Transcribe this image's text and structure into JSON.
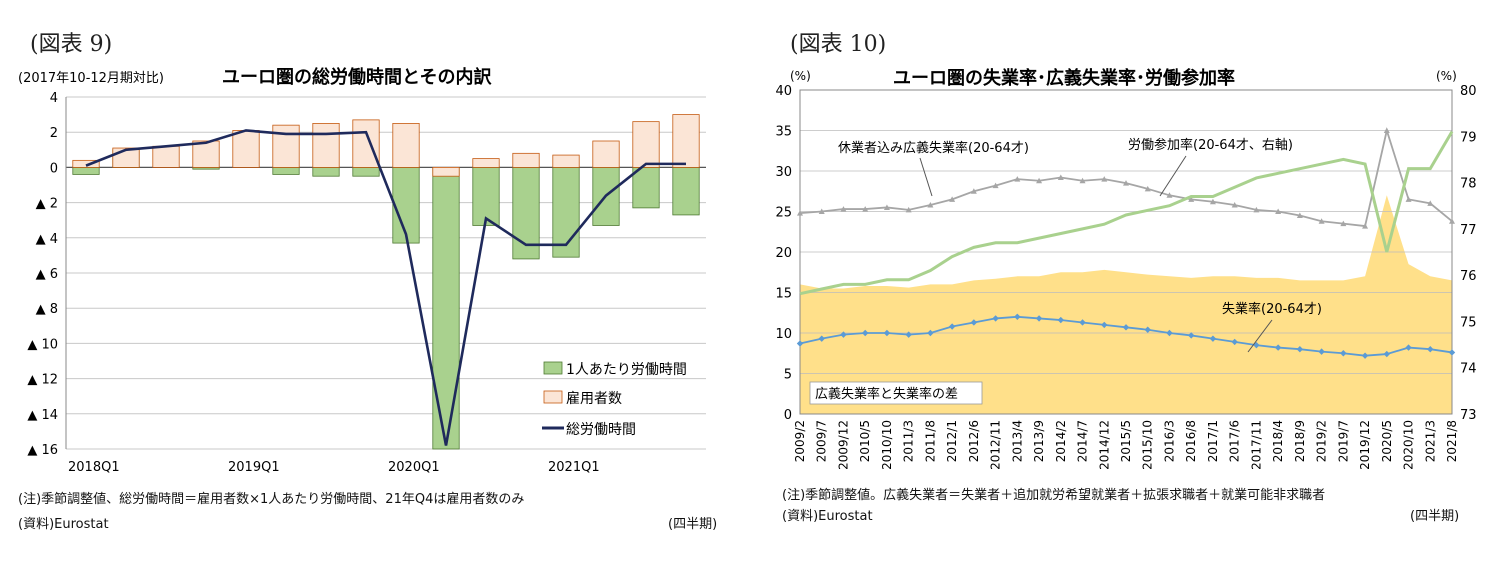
{
  "figures": [
    {
      "label": "(図表 9)",
      "notes": [
        "(注)季節調整値、総労働時間＝雇用者数×1人あたり労働時間、21年Q4は雇用者数のみ",
        "(資料)Eurostat"
      ],
      "period_label": "(四半期)"
    },
    {
      "label": "(図表 10)",
      "notes": [
        "(注)季節調整値。広義失業者＝失業者＋追加就労希望就業者＋拡張求職者＋就業可能非求職者",
        "(資料)Eurostat"
      ],
      "period_label": "(四半期)"
    }
  ],
  "chart_data": [
    {
      "type": "bar",
      "title": "ユーロ圏の総労働時間とその内訳",
      "ylabel": "(2017年10-12月期対比)",
      "ylim": [
        -16,
        4
      ],
      "yticks": [
        4,
        2,
        0,
        -2,
        -4,
        -6,
        -8,
        -10,
        -12,
        -14,
        -16
      ],
      "ytick_labels": [
        "4",
        "2",
        "0",
        "▲ 2",
        "▲ 4",
        "▲ 6",
        "▲ 8",
        "▲ 10",
        "▲ 12",
        "▲ 14",
        "▲ 16"
      ],
      "categories": [
        "2018Q1",
        "2018Q2",
        "2018Q3",
        "2018Q4",
        "2019Q1",
        "2019Q2",
        "2019Q3",
        "2019Q4",
        "2020Q1",
        "2020Q2",
        "2020Q3",
        "2020Q4",
        "2021Q1",
        "2021Q2",
        "2021Q3",
        "2021Q4"
      ],
      "xtick_labels": [
        {
          "index": 0,
          "label": "2018Q1"
        },
        {
          "index": 4,
          "label": "2019Q1"
        },
        {
          "index": 8,
          "label": "2020Q1"
        },
        {
          "index": 12,
          "label": "2021Q1"
        }
      ],
      "grid": true,
      "legend_position": "bottom-right",
      "series": [
        {
          "name": "1人あたり労働時間",
          "kind": "bar",
          "color": "#a9d18e",
          "values": [
            -0.4,
            1.0,
            0.0,
            -0.1,
            0.0,
            -0.4,
            -0.5,
            -0.5,
            -4.3,
            -16.0,
            -3.3,
            -5.2,
            -5.1,
            -3.3,
            -2.3,
            -2.7
          ]
        },
        {
          "name": "雇用者数",
          "kind": "bar",
          "color": "#fbe5d6",
          "values": [
            0.4,
            1.1,
            1.2,
            1.5,
            2.1,
            2.4,
            2.5,
            2.7,
            2.5,
            -0.5,
            0.5,
            0.8,
            0.7,
            1.5,
            2.6,
            3.0
          ]
        },
        {
          "name": "総労働時間",
          "kind": "line",
          "color": "#1f2a5c",
          "values": [
            0.1,
            1.0,
            1.2,
            1.4,
            2.1,
            1.9,
            1.9,
            2.0,
            -3.8,
            -15.8,
            -2.9,
            -4.4,
            -4.4,
            -1.6,
            0.2,
            null
          ]
        }
      ]
    },
    {
      "type": "line",
      "title": "ユーロ圏の失業率･広義失業率･労働参加率",
      "ylabel": "(%)",
      "y2label": "(%)",
      "ylim": [
        0,
        40
      ],
      "y2lim": [
        73,
        80
      ],
      "yticks": [
        0,
        5,
        10,
        15,
        20,
        25,
        30,
        35,
        40
      ],
      "y2ticks": [
        73,
        74,
        75,
        76,
        77,
        78,
        79,
        80
      ],
      "x_labels": [
        "2009/2",
        "2009/7",
        "2009/12",
        "2010/5",
        "2010/10",
        "2011/3",
        "2011/8",
        "2012/1",
        "2012/6",
        "2012/11",
        "2013/4",
        "2013/9",
        "2014/2",
        "2014/7",
        "2014/12",
        "2015/5",
        "2015/10",
        "2016/3",
        "2016/8",
        "2017/1",
        "2017/6",
        "2017/11",
        "2018/4",
        "2018/9",
        "2019/2",
        "2019/7",
        "2019/12",
        "2020/5",
        "2020/10",
        "2021/3",
        "2021/8"
      ],
      "grid": true,
      "annotations": [
        {
          "text": "休業者込み広義失業率(20-64才)"
        },
        {
          "text": "労働参加率(20-64才、右軸)"
        },
        {
          "text": "失業率(20-64才)"
        },
        {
          "text": "広義失業率と失業率の差"
        }
      ],
      "series": [
        {
          "name": "広義失業率と失業率の差",
          "kind": "area",
          "color": "#ffe08a",
          "values": [
            16.0,
            15.5,
            15.5,
            15.8,
            15.8,
            15.6,
            16.0,
            16.0,
            16.5,
            16.7,
            17.0,
            17.0,
            17.5,
            17.5,
            17.8,
            17.5,
            17.2,
            17.0,
            16.8,
            17.0,
            17.0,
            16.8,
            16.8,
            16.5,
            16.5,
            16.5,
            17.0,
            27.0,
            18.5,
            17.0,
            16.5
          ]
        },
        {
          "name": "休業者込み広義失業率(20-64才)",
          "kind": "line",
          "color": "#a6a6a6",
          "values": [
            24.8,
            25.0,
            25.3,
            25.3,
            25.5,
            25.2,
            25.8,
            26.5,
            27.5,
            28.2,
            29.0,
            28.8,
            29.2,
            28.8,
            29.0,
            28.5,
            27.8,
            27.0,
            26.5,
            26.2,
            25.8,
            25.2,
            25.0,
            24.5,
            23.8,
            23.5,
            23.2,
            35.0,
            26.5,
            26.0,
            23.8
          ]
        },
        {
          "name": "労働参加率(20-64才、右軸)",
          "kind": "line",
          "axis": "right",
          "color": "#a9d18e",
          "values": [
            75.6,
            75.7,
            75.8,
            75.8,
            75.9,
            75.9,
            76.1,
            76.4,
            76.6,
            76.7,
            76.7,
            76.8,
            76.9,
            77.0,
            77.1,
            77.3,
            77.4,
            77.5,
            77.7,
            77.7,
            77.9,
            78.1,
            78.2,
            78.3,
            78.4,
            78.5,
            78.4,
            76.5,
            78.3,
            78.3,
            79.1
          ]
        },
        {
          "name": "失業率(20-64才)",
          "kind": "line",
          "color": "#5b9bd5",
          "values": [
            8.7,
            9.3,
            9.8,
            10.0,
            10.0,
            9.8,
            10.0,
            10.8,
            11.3,
            11.8,
            12.0,
            11.8,
            11.6,
            11.3,
            11.0,
            10.7,
            10.4,
            10.0,
            9.7,
            9.3,
            8.9,
            8.5,
            8.2,
            8.0,
            7.7,
            7.5,
            7.2,
            7.4,
            8.2,
            8.0,
            7.6
          ]
        }
      ]
    }
  ]
}
